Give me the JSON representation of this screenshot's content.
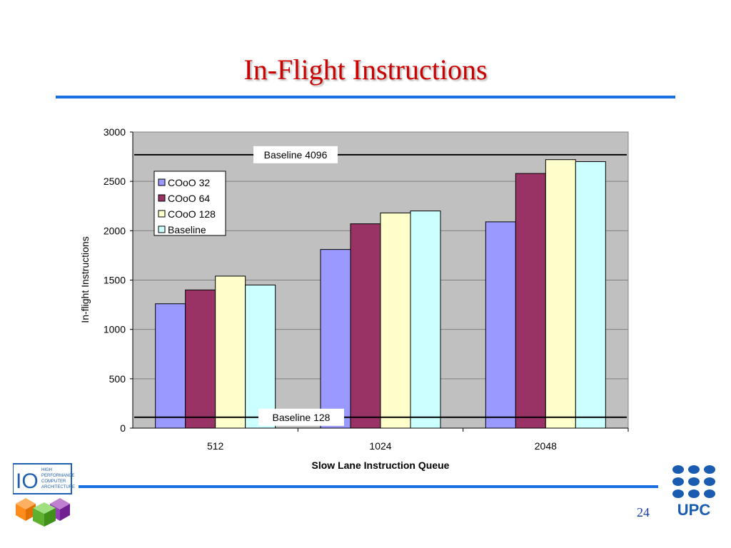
{
  "slide": {
    "title": "In-Flight Instructions",
    "page_number": "24",
    "accent_color": "#1a6ee0",
    "title_color": "#cc0000"
  },
  "logos": {
    "left": {
      "icon": "hpc-architecture-logo",
      "text_lines": [
        "HIGH",
        "PERFORMANCE",
        "COMPUTER",
        "ARCHITECTURE"
      ],
      "mark": "IO"
    },
    "right": {
      "icon": "upc-logo",
      "text": "UPC"
    }
  },
  "chart_data": {
    "type": "bar",
    "categories": [
      "512",
      "1024",
      "2048"
    ],
    "series": [
      {
        "name": "COoO 32",
        "values": [
          1260,
          1810,
          2090
        ],
        "color": "#9999ff"
      },
      {
        "name": "COoO 64",
        "values": [
          1400,
          2070,
          2580
        ],
        "color": "#993366"
      },
      {
        "name": "COoO 128",
        "values": [
          1540,
          2180,
          2720
        ],
        "color": "#ffffcc"
      },
      {
        "name": "Baseline",
        "values": [
          1450,
          2200,
          2700
        ],
        "color": "#ccffff"
      }
    ],
    "xlabel": "Slow Lane Instruction Queue",
    "ylabel": "In-flight Instructions",
    "ylim": [
      0,
      3000
    ],
    "yticks": [
      "0",
      "500",
      "1000",
      "1500",
      "2000",
      "2500",
      "3000"
    ],
    "grid": true,
    "plot_background": "#c0c0c0",
    "legend_position": "top-left",
    "reference_lines": [
      {
        "label": "Baseline 4096",
        "value": 2770
      },
      {
        "label": "Baseline 128",
        "value": 110
      }
    ]
  }
}
